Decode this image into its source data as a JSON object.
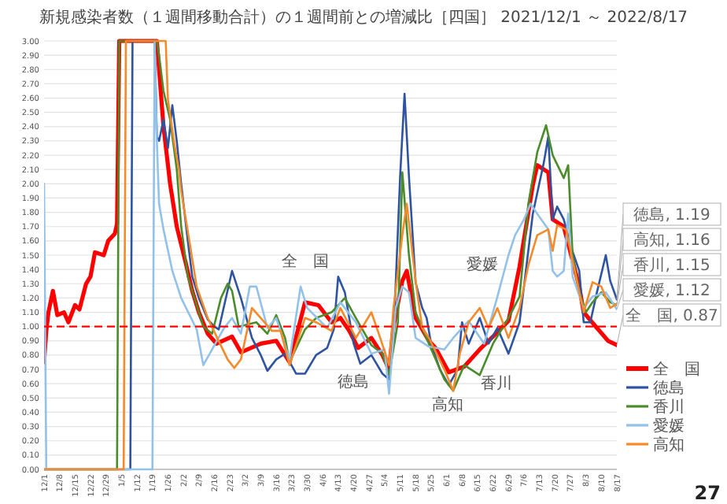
{
  "chart_data": {
    "type": "line",
    "title": "新規感染者数（１週間移動合計）の１週間前との増減比［四国］ 2021/12/1 ～ 2022/8/17",
    "xlim": [
      "2021-12-01",
      "2022-08-17"
    ],
    "ylim": [
      0,
      3
    ],
    "yticks": [
      {
        "value": 0,
        "label": "0.00"
      },
      {
        "value": 0.1,
        "label": "0.10"
      },
      {
        "value": 0.2,
        "label": "0.20"
      },
      {
        "value": 0.3,
        "label": "0.30"
      },
      {
        "value": 0.4,
        "label": "0.40"
      },
      {
        "value": 0.5,
        "label": "0.50"
      },
      {
        "value": 0.6,
        "label": "0.60"
      },
      {
        "value": 0.7,
        "label": "0.70"
      },
      {
        "value": 0.8,
        "label": "0.80"
      },
      {
        "value": 0.9,
        "label": "0.90"
      },
      {
        "value": 1,
        "label": "1.00"
      },
      {
        "value": 1.1,
        "label": "1.10"
      },
      {
        "value": 1.2,
        "label": "1.20"
      },
      {
        "value": 1.3,
        "label": "1.30"
      },
      {
        "value": 1.4,
        "label": "1.40"
      },
      {
        "value": 1.5,
        "label": "1.50"
      },
      {
        "value": 1.6,
        "label": "1.60"
      },
      {
        "value": 1.7,
        "label": "1.70"
      },
      {
        "value": 1.8,
        "label": "1.80"
      },
      {
        "value": 1.9,
        "label": "1.90"
      },
      {
        "value": 2,
        "label": "2.00"
      },
      {
        "value": 2.1,
        "label": "2.10"
      },
      {
        "value": 2.2,
        "label": "2.20"
      },
      {
        "value": 2.3,
        "label": "2.30"
      },
      {
        "value": 2.4,
        "label": "2.40"
      },
      {
        "value": 2.5,
        "label": "2.50"
      },
      {
        "value": 2.6,
        "label": "2.60"
      },
      {
        "value": 2.7,
        "label": "2.70"
      },
      {
        "value": 2.8,
        "label": "2.80"
      },
      {
        "value": 2.9,
        "label": "2.90"
      },
      {
        "value": 3,
        "label": "3.00"
      }
    ],
    "xticks": [
      {
        "value": "2021-12-01",
        "label": "12/1"
      },
      {
        "value": "2021-12-08",
        "label": "12/8"
      },
      {
        "value": "2021-12-15",
        "label": "12/15"
      },
      {
        "value": "2021-12-22",
        "label": "12/22"
      },
      {
        "value": "2021-12-29",
        "label": "12/29"
      },
      {
        "value": "2022-01-05",
        "label": "1/5"
      },
      {
        "value": "2022-01-12",
        "label": "1/12"
      },
      {
        "value": "2022-01-19",
        "label": "1/19"
      },
      {
        "value": "2022-01-26",
        "label": "1/26"
      },
      {
        "value": "2022-02-02",
        "label": "2/2"
      },
      {
        "value": "2022-02-09",
        "label": "2/9"
      },
      {
        "value": "2022-02-16",
        "label": "2/16"
      },
      {
        "value": "2022-02-23",
        "label": "2/23"
      },
      {
        "value": "2022-03-02",
        "label": "3/2"
      },
      {
        "value": "2022-03-09",
        "label": "3/9"
      },
      {
        "value": "2022-03-16",
        "label": "3/16"
      },
      {
        "value": "2022-03-23",
        "label": "3/23"
      },
      {
        "value": "2022-03-30",
        "label": "3/30"
      },
      {
        "value": "2022-04-06",
        "label": "4/6"
      },
      {
        "value": "2022-04-13",
        "label": "4/13"
      },
      {
        "value": "2022-04-20",
        "label": "4/20"
      },
      {
        "value": "2022-04-27",
        "label": "4/27"
      },
      {
        "value": "2022-05-04",
        "label": "5/4"
      },
      {
        "value": "2022-05-11",
        "label": "5/11"
      },
      {
        "value": "2022-05-18",
        "label": "5/18"
      },
      {
        "value": "2022-05-25",
        "label": "5/25"
      },
      {
        "value": "2022-06-01",
        "label": "6/1"
      },
      {
        "value": "2022-06-08",
        "label": "6/8"
      },
      {
        "value": "2022-06-15",
        "label": "6/15"
      },
      {
        "value": "2022-06-22",
        "label": "6/22"
      },
      {
        "value": "2022-06-29",
        "label": "6/29"
      },
      {
        "value": "2022-07-06",
        "label": "7/6"
      },
      {
        "value": "2022-07-13",
        "label": "7/13"
      },
      {
        "value": "2022-07-20",
        "label": "7/20"
      },
      {
        "value": "2022-07-27",
        "label": "7/27"
      },
      {
        "value": "2022-08-03",
        "label": "8/3"
      },
      {
        "value": "2022-08-10",
        "label": "8/10"
      },
      {
        "value": "2022-08-17",
        "label": "8/17"
      }
    ],
    "grid": "y",
    "legend": "bottom right",
    "marker": "none",
    "line_style": "solid",
    "ref_lines": [
      {
        "axis": "y",
        "value": 1,
        "color": "#ff0000",
        "line_style": "dashed"
      }
    ],
    "series": [
      {
        "name": "全　国",
        "color": "#ff0000",
        "x": [
          "2021-12-01",
          "2021-12-02",
          "2021-12-03",
          "2021-12-05",
          "2021-12-07",
          "2021-12-10",
          "2021-12-12",
          "2021-12-15",
          "2021-12-17",
          "2021-12-20",
          "2021-12-22",
          "2021-12-24",
          "2021-12-28",
          "2021-12-30",
          "2022-01-02",
          "2022-01-03",
          "2022-01-04",
          "2022-01-21",
          "2022-01-24",
          "2022-01-27",
          "2022-01-30",
          "2022-02-03",
          "2022-02-06",
          "2022-02-09",
          "2022-02-13",
          "2022-02-17",
          "2022-02-24",
          "2022-02-28",
          "2022-03-09",
          "2022-03-16",
          "2022-03-22",
          "2022-03-29",
          "2022-04-04",
          "2022-04-10",
          "2022-04-14",
          "2022-04-18",
          "2022-04-22",
          "2022-04-28",
          "2022-05-03",
          "2022-05-06",
          "2022-05-08",
          "2022-05-12",
          "2022-05-14",
          "2022-05-18",
          "2022-05-24",
          "2022-05-27",
          "2022-06-02",
          "2022-06-09",
          "2022-06-16",
          "2022-06-22",
          "2022-06-29",
          "2022-07-04",
          "2022-07-10",
          "2022-07-12",
          "2022-07-17",
          "2022-07-19",
          "2022-07-24",
          "2022-07-31",
          "2022-08-02",
          "2022-08-08",
          "2022-08-13",
          "2022-08-17"
        ],
        "values": [
          0.75,
          0.97,
          1.1,
          1.25,
          1.08,
          1.1,
          1.03,
          1.15,
          1.12,
          1.3,
          1.35,
          1.52,
          1.5,
          1.6,
          1.65,
          1.72,
          3.0,
          3.0,
          2.4,
          2.0,
          1.7,
          1.45,
          1.25,
          1.1,
          0.95,
          0.88,
          0.93,
          0.82,
          0.88,
          0.9,
          0.75,
          1.17,
          1.15,
          1.03,
          1.06,
          0.97,
          0.85,
          0.92,
          0.8,
          0.7,
          1.0,
          1.32,
          1.39,
          1.06,
          0.9,
          0.85,
          0.68,
          0.72,
          0.84,
          0.93,
          1.04,
          1.42,
          1.99,
          2.13,
          2.08,
          1.75,
          1.7,
          1.28,
          1.1,
          0.99,
          0.9,
          0.87
        ]
      },
      {
        "name": "徳島",
        "color": "#2e54a1",
        "x": [
          "2021-12-01",
          "2022-01-09",
          "2022-01-10",
          "2022-01-20",
          "2022-01-21",
          "2022-01-22",
          "2022-01-24",
          "2022-01-26",
          "2022-01-28",
          "2022-01-30",
          "2022-02-01",
          "2022-02-04",
          "2022-02-06",
          "2022-02-09",
          "2022-02-13",
          "2022-02-16",
          "2022-02-18",
          "2022-02-24",
          "2022-02-28",
          "2022-03-05",
          "2022-03-09",
          "2022-03-12",
          "2022-03-16",
          "2022-03-20",
          "2022-03-25",
          "2022-03-29",
          "2022-04-03",
          "2022-04-08",
          "2022-04-11",
          "2022-04-13",
          "2022-04-16",
          "2022-04-20",
          "2022-04-23",
          "2022-04-28",
          "2022-05-03",
          "2022-05-06",
          "2022-05-08",
          "2022-05-11",
          "2022-05-13",
          "2022-05-15",
          "2022-05-18",
          "2022-05-21",
          "2022-05-23",
          "2022-05-25",
          "2022-05-29",
          "2022-06-02",
          "2022-06-06",
          "2022-06-08",
          "2022-06-11",
          "2022-06-16",
          "2022-06-20",
          "2022-06-24",
          "2022-06-29",
          "2022-07-04",
          "2022-07-06",
          "2022-07-10",
          "2022-07-15",
          "2022-07-17",
          "2022-07-19",
          "2022-07-21",
          "2022-07-24",
          "2022-07-27",
          "2022-07-31",
          "2022-08-02",
          "2022-08-05",
          "2022-08-08",
          "2022-08-12",
          "2022-08-14",
          "2022-08-17"
        ],
        "values": [
          0,
          0,
          3.0,
          3.0,
          2.33,
          2.3,
          2.45,
          2.25,
          2.55,
          2.3,
          2.0,
          1.6,
          1.35,
          1.2,
          1.05,
          1.0,
          0.98,
          1.39,
          1.2,
          0.92,
          0.8,
          0.69,
          0.77,
          0.81,
          0.67,
          0.67,
          0.8,
          0.85,
          0.98,
          1.35,
          1.24,
          0.88,
          0.74,
          0.8,
          0.67,
          0.63,
          0.92,
          2.05,
          2.63,
          2.05,
          1.31,
          1.13,
          1.06,
          0.88,
          0.7,
          0.59,
          0.7,
          1.03,
          0.88,
          1.06,
          0.88,
          0.99,
          0.81,
          1.03,
          1.28,
          1.79,
          2.15,
          2.33,
          1.75,
          1.84,
          1.75,
          1.57,
          1.39,
          1.03,
          1.03,
          1.24,
          1.5,
          1.32,
          1.19
        ]
      },
      {
        "name": "香川",
        "color": "#4a8c2a",
        "x": [
          "2021-12-01",
          "2022-01-03",
          "2022-01-04",
          "2022-01-21",
          "2022-01-22",
          "2022-01-24",
          "2022-01-27",
          "2022-01-30",
          "2022-02-01",
          "2022-02-04",
          "2022-02-08",
          "2022-02-11",
          "2022-02-15",
          "2022-02-19",
          "2022-02-22",
          "2022-02-24",
          "2022-02-27",
          "2022-03-07",
          "2022-03-12",
          "2022-03-16",
          "2022-03-20",
          "2022-03-22",
          "2022-03-29",
          "2022-04-03",
          "2022-04-10",
          "2022-04-16",
          "2022-04-21",
          "2022-04-28",
          "2022-05-03",
          "2022-05-06",
          "2022-05-10",
          "2022-05-12",
          "2022-05-15",
          "2022-05-18",
          "2022-05-24",
          "2022-05-31",
          "2022-06-04",
          "2022-06-09",
          "2022-06-16",
          "2022-06-22",
          "2022-06-29",
          "2022-07-04",
          "2022-07-08",
          "2022-07-12",
          "2022-07-16",
          "2022-07-19",
          "2022-07-24",
          "2022-07-26",
          "2022-07-28",
          "2022-07-31",
          "2022-08-03",
          "2022-08-06",
          "2022-08-10",
          "2022-08-14",
          "2022-08-17"
        ],
        "values": [
          0,
          0,
          3.0,
          3.0,
          2.9,
          2.65,
          2.45,
          2.1,
          1.7,
          1.35,
          1.15,
          1.0,
          0.95,
          1.2,
          1.3,
          1.25,
          1.0,
          1.03,
          0.95,
          1.08,
          0.92,
          0.75,
          0.98,
          1.06,
          1.1,
          1.2,
          1.06,
          0.87,
          0.81,
          0.66,
          1.03,
          2.08,
          1.5,
          1.1,
          0.88,
          0.63,
          0.55,
          0.73,
          0.66,
          0.88,
          1.06,
          1.21,
          1.86,
          2.22,
          2.41,
          2.2,
          2.04,
          2.13,
          1.5,
          1.24,
          1.1,
          1.17,
          1.24,
          1.17,
          1.15
        ]
      },
      {
        "name": "愛媛",
        "color": "#92c1e9",
        "x": [
          "2021-12-01",
          "2021-12-02",
          "2022-01-19",
          "2022-01-20",
          "2022-01-21",
          "2022-01-22",
          "2022-01-24",
          "2022-01-28",
          "2022-02-01",
          "2022-02-08",
          "2022-02-11",
          "2022-02-15",
          "2022-02-20",
          "2022-02-24",
          "2022-02-28",
          "2022-03-04",
          "2022-03-07",
          "2022-03-12",
          "2022-03-16",
          "2022-03-22",
          "2022-03-27",
          "2022-03-30",
          "2022-04-08",
          "2022-04-14",
          "2022-04-21",
          "2022-04-28",
          "2022-05-04",
          "2022-05-06",
          "2022-05-09",
          "2022-05-12",
          "2022-05-15",
          "2022-05-18",
          "2022-05-24",
          "2022-05-31",
          "2022-06-04",
          "2022-06-11",
          "2022-06-18",
          "2022-06-24",
          "2022-06-29",
          "2022-07-02",
          "2022-07-06",
          "2022-07-09",
          "2022-07-12",
          "2022-07-17",
          "2022-07-19",
          "2022-07-21",
          "2022-07-24",
          "2022-07-26",
          "2022-07-28",
          "2022-08-02",
          "2022-08-06",
          "2022-08-12",
          "2022-08-17"
        ],
        "values": [
          2.0,
          0,
          0,
          3.0,
          2.3,
          1.86,
          1.68,
          1.39,
          1.2,
          0.98,
          0.73,
          0.84,
          0.98,
          1.06,
          0.95,
          1.28,
          1.28,
          0.99,
          1.06,
          0.77,
          1.28,
          1.13,
          0.99,
          1.17,
          1.03,
          0.81,
          0.84,
          0.53,
          1.13,
          1.28,
          1.24,
          0.92,
          0.86,
          0.84,
          0.92,
          1.04,
          0.88,
          1.21,
          1.5,
          1.64,
          1.75,
          1.86,
          1.79,
          1.68,
          1.39,
          1.35,
          1.39,
          1.79,
          1.35,
          1.13,
          1.21,
          1.24,
          1.12
        ]
      },
      {
        "name": "高知",
        "color": "#f58a2a",
        "x": [
          "2021-12-01",
          "2022-01-06",
          "2022-01-07",
          "2022-01-25",
          "2022-01-26",
          "2022-01-29",
          "2022-01-31",
          "2022-02-01",
          "2022-02-05",
          "2022-02-08",
          "2022-02-13",
          "2022-02-17",
          "2022-02-22",
          "2022-02-25",
          "2022-02-28",
          "2022-03-05",
          "2022-03-09",
          "2022-03-14",
          "2022-03-18",
          "2022-03-22",
          "2022-03-29",
          "2022-04-03",
          "2022-04-10",
          "2022-04-14",
          "2022-04-21",
          "2022-04-28",
          "2022-05-02",
          "2022-05-06",
          "2022-05-08",
          "2022-05-12",
          "2022-05-14",
          "2022-05-18",
          "2022-05-21",
          "2022-05-24",
          "2022-05-31",
          "2022-06-04",
          "2022-06-07",
          "2022-06-11",
          "2022-06-16",
          "2022-06-20",
          "2022-06-24",
          "2022-06-29",
          "2022-07-04",
          "2022-07-08",
          "2022-07-12",
          "2022-07-17",
          "2022-07-19",
          "2022-07-21",
          "2022-07-25",
          "2022-07-28",
          "2022-08-02",
          "2022-08-06",
          "2022-08-10",
          "2022-08-14",
          "2022-08-17"
        ],
        "values": [
          0,
          0,
          3.0,
          3.0,
          2.59,
          2.27,
          2.1,
          1.95,
          1.57,
          1.28,
          1.06,
          0.93,
          0.77,
          0.71,
          0.77,
          1.13,
          1.06,
          0.97,
          0.97,
          0.73,
          1.06,
          1.03,
          0.97,
          1.13,
          0.92,
          1.1,
          0.92,
          0.73,
          1.13,
          1.64,
          1.86,
          1.32,
          0.99,
          0.92,
          0.7,
          0.55,
          0.81,
          1.03,
          1.13,
          0.99,
          1.13,
          0.92,
          1.13,
          1.43,
          1.64,
          1.68,
          1.53,
          1.71,
          1.68,
          1.46,
          1.1,
          1.31,
          1.28,
          1.13,
          1.16
        ]
      }
    ],
    "annotations": [
      "全　国",
      "徳島",
      "愛媛",
      "香川",
      "高知",
      {
        "text": "徳島, 1.19",
        "x": "2022-08-17",
        "y": 1.19
      },
      {
        "text": "高知, 1.16",
        "x": "2022-08-17",
        "y": 1.16
      },
      {
        "text": "香川, 1.15",
        "x": "2022-08-17",
        "y": 1.15
      },
      {
        "text": "愛媛, 1.12",
        "x": "2022-08-17",
        "y": 1.12
      },
      {
        "text": "全　国, 0.87",
        "x": "2022-08-17",
        "y": 0.87
      },
      "27"
    ]
  }
}
